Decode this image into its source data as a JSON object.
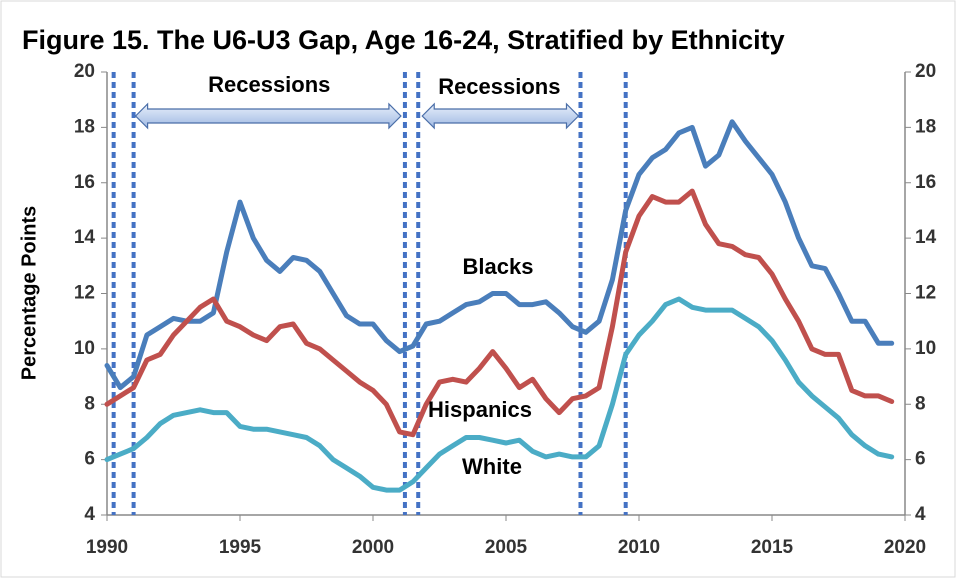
{
  "chart_data": {
    "type": "line",
    "title": "Figure 15. The U6-U3 Gap, Age 16-24, Stratified by Ethnicity",
    "y_label": "Percentage Points",
    "x": [
      1990,
      1990.5,
      1991,
      1991.5,
      1992,
      1992.5,
      1993,
      1993.5,
      1994,
      1994.5,
      1995,
      1995.5,
      1996,
      1996.5,
      1997,
      1997.5,
      1998,
      1998.5,
      1999,
      1999.5,
      2000,
      2000.5,
      2001,
      2001.5,
      2002,
      2002.5,
      2003,
      2003.5,
      2004,
      2004.5,
      2005,
      2005.5,
      2006,
      2006.5,
      2007,
      2007.5,
      2008,
      2008.5,
      2009,
      2009.5,
      2010,
      2010.5,
      2011,
      2011.5,
      2012,
      2012.5,
      2013,
      2013.5,
      2014,
      2014.5,
      2015,
      2015.5,
      2016,
      2016.5,
      2017,
      2017.5,
      2018,
      2018.5,
      2019,
      2019.5
    ],
    "series": [
      {
        "name": "Blacks",
        "color": "#4a7ebb",
        "values": [
          9.4,
          8.6,
          9.0,
          10.5,
          10.8,
          11.1,
          11.0,
          11.0,
          11.3,
          13.5,
          15.3,
          14.0,
          13.2,
          12.8,
          13.3,
          13.2,
          12.8,
          12.0,
          11.2,
          10.9,
          10.9,
          10.3,
          9.9,
          10.1,
          10.9,
          11.0,
          11.3,
          11.6,
          11.7,
          12.0,
          12.0,
          11.6,
          11.6,
          11.7,
          11.3,
          10.8,
          10.6,
          11.0,
          12.5,
          15.0,
          16.3,
          16.9,
          17.2,
          17.8,
          18.0,
          16.6,
          17.0,
          18.2,
          17.5,
          16.9,
          16.3,
          15.3,
          14.0,
          13.0,
          12.9,
          12.0,
          11.0,
          11.0,
          10.2,
          10.2
        ]
      },
      {
        "name": "Hispanics",
        "color": "#c0504d",
        "values": [
          8.0,
          8.3,
          8.6,
          9.6,
          9.8,
          10.5,
          11.0,
          11.5,
          11.8,
          11.0,
          10.8,
          10.5,
          10.3,
          10.8,
          10.9,
          10.2,
          10.0,
          9.6,
          9.2,
          8.8,
          8.5,
          8.0,
          7.0,
          6.9,
          8.0,
          8.8,
          8.9,
          8.8,
          9.3,
          9.9,
          9.3,
          8.6,
          8.9,
          8.2,
          7.7,
          8.2,
          8.3,
          8.6,
          10.8,
          13.5,
          14.8,
          15.5,
          15.3,
          15.3,
          15.7,
          14.5,
          13.8,
          13.7,
          13.4,
          13.3,
          12.7,
          11.8,
          11.0,
          10.0,
          9.8,
          9.8,
          8.5,
          8.3,
          8.3,
          8.1
        ]
      },
      {
        "name": "White",
        "color": "#4bacc6",
        "values": [
          6.0,
          6.2,
          6.4,
          6.8,
          7.3,
          7.6,
          7.7,
          7.8,
          7.7,
          7.7,
          7.2,
          7.1,
          7.1,
          7.0,
          6.9,
          6.8,
          6.5,
          6.0,
          5.7,
          5.4,
          5.0,
          4.9,
          4.9,
          5.2,
          5.7,
          6.2,
          6.5,
          6.8,
          6.8,
          6.7,
          6.6,
          6.7,
          6.3,
          6.1,
          6.2,
          6.1,
          6.1,
          6.5,
          8.0,
          9.8,
          10.5,
          11.0,
          11.6,
          11.8,
          11.5,
          11.4,
          11.4,
          11.4,
          11.1,
          10.8,
          10.3,
          9.6,
          8.8,
          8.3,
          7.9,
          7.5,
          6.9,
          6.5,
          6.2,
          6.1
        ]
      }
    ],
    "recession_lines": [
      1990.25,
      1991,
      2001.2,
      2001.7,
      2007.8,
      2009.5
    ],
    "recession_color": "#4472c4",
    "recession_label": "Recessions",
    "xlim": [
      1990,
      2020
    ],
    "xticks": [
      1990,
      1995,
      2000,
      2005,
      2010,
      2015,
      2020
    ],
    "ylim": [
      4,
      20
    ],
    "yticks": [
      4,
      6,
      8,
      10,
      12,
      14,
      16,
      18,
      20
    ],
    "y2lim": [
      4,
      20
    ],
    "y2ticks": [
      4,
      6,
      8,
      10,
      12,
      14,
      16,
      18,
      20
    ],
    "grid": false
  }
}
